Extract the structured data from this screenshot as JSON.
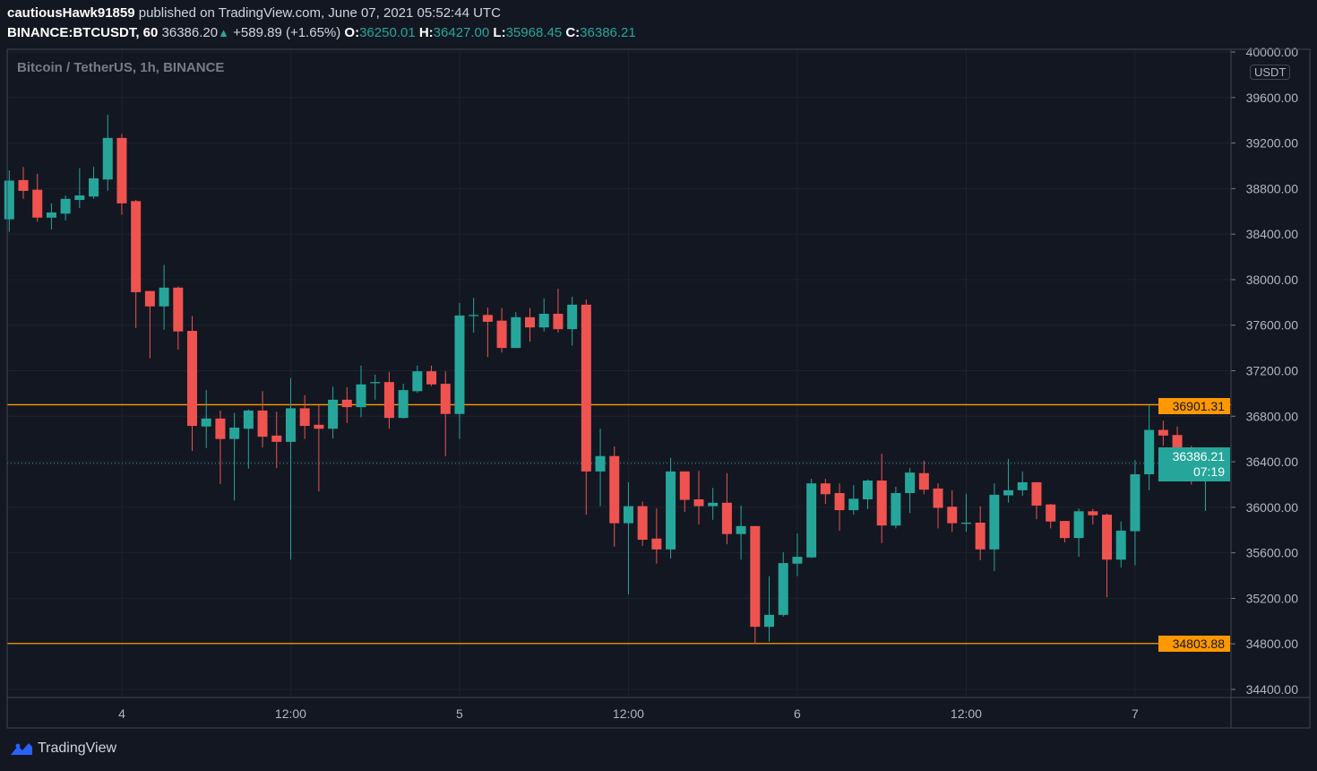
{
  "header": {
    "author": "cautiousHawk91859",
    "published_text": "published on TradingView.com, June 07, 2021 05:52:44 UTC",
    "symbol": "BINANCE:BTCUSDT, 60",
    "last_price": "36386.20",
    "change": "+589.89 (+1.65%)",
    "o_label": "O:",
    "o_value": "36250.01",
    "h_label": "H:",
    "h_value": "36427.00",
    "l_label": "L:",
    "l_value": "35968.45",
    "c_label": "C:",
    "c_value": "36386.21"
  },
  "legend": "Bitcoin / TetherUS, 1h, BINANCE",
  "currency_badge": "USDT",
  "price_tags": {
    "upper_line": "36901.31",
    "lower_line": "34803.88",
    "current_price": "36386.21",
    "countdown": "07:19"
  },
  "footer": {
    "brand": "TradingView"
  },
  "colors": {
    "background": "#131722",
    "up": "#26a69a",
    "down": "#ef5350",
    "horizontal_line": "#ff9800",
    "grid": "#1e222d",
    "axis_text": "#b2b5be"
  },
  "chart_data": {
    "type": "candlestick",
    "title": "Bitcoin / TetherUS, 1h, BINANCE",
    "ylim": [
      34400,
      40000
    ],
    "y_ticks": [
      34400,
      34800,
      35200,
      35600,
      36000,
      36400,
      36800,
      37200,
      37600,
      38000,
      38400,
      38800,
      39200,
      39600,
      40000
    ],
    "x_ticks": [
      {
        "time": "2021-06-04 00:00",
        "label": "4"
      },
      {
        "time": "2021-06-04 12:00",
        "label": "12:00"
      },
      {
        "time": "2021-06-05 00:00",
        "label": "5"
      },
      {
        "time": "2021-06-05 12:00",
        "label": "12:00"
      },
      {
        "time": "2021-06-06 00:00",
        "label": "6"
      },
      {
        "time": "2021-06-06 12:00",
        "label": "12:00"
      },
      {
        "time": "2021-06-07 00:00",
        "label": "7"
      }
    ],
    "grid": true,
    "horizontal_lines": [
      36901.31,
      34803.88
    ],
    "current_price": 36386.21,
    "time": [
      "2021-06-03 16:00",
      "2021-06-03 17:00",
      "2021-06-03 18:00",
      "2021-06-03 19:00",
      "2021-06-03 20:00",
      "2021-06-03 21:00",
      "2021-06-03 22:00",
      "2021-06-03 23:00",
      "2021-06-04 00:00",
      "2021-06-04 01:00",
      "2021-06-04 02:00",
      "2021-06-04 03:00",
      "2021-06-04 04:00",
      "2021-06-04 05:00",
      "2021-06-04 06:00",
      "2021-06-04 07:00",
      "2021-06-04 08:00",
      "2021-06-04 09:00",
      "2021-06-04 10:00",
      "2021-06-04 11:00",
      "2021-06-04 12:00",
      "2021-06-04 13:00",
      "2021-06-04 14:00",
      "2021-06-04 15:00",
      "2021-06-04 16:00",
      "2021-06-04 17:00",
      "2021-06-04 18:00",
      "2021-06-04 19:00",
      "2021-06-04 20:00",
      "2021-06-04 21:00",
      "2021-06-04 22:00",
      "2021-06-04 23:00",
      "2021-06-05 00:00",
      "2021-06-05 01:00",
      "2021-06-05 02:00",
      "2021-06-05 03:00",
      "2021-06-05 04:00",
      "2021-06-05 05:00",
      "2021-06-05 06:00",
      "2021-06-05 07:00",
      "2021-06-05 08:00",
      "2021-06-05 09:00",
      "2021-06-05 10:00",
      "2021-06-05 11:00",
      "2021-06-05 12:00",
      "2021-06-05 13:00",
      "2021-06-05 14:00",
      "2021-06-05 15:00",
      "2021-06-05 16:00",
      "2021-06-05 17:00",
      "2021-06-05 18:00",
      "2021-06-05 19:00",
      "2021-06-05 20:00",
      "2021-06-05 21:00",
      "2021-06-05 22:00",
      "2021-06-05 23:00",
      "2021-06-06 00:00",
      "2021-06-06 01:00",
      "2021-06-06 02:00",
      "2021-06-06 03:00",
      "2021-06-06 04:00",
      "2021-06-06 05:00",
      "2021-06-06 06:00",
      "2021-06-06 07:00",
      "2021-06-06 08:00",
      "2021-06-06 09:00",
      "2021-06-06 10:00",
      "2021-06-06 11:00",
      "2021-06-06 12:00",
      "2021-06-06 13:00",
      "2021-06-06 14:00",
      "2021-06-06 15:00",
      "2021-06-06 16:00",
      "2021-06-06 17:00",
      "2021-06-06 18:00",
      "2021-06-06 19:00",
      "2021-06-06 20:00",
      "2021-06-06 21:00",
      "2021-06-06 22:00",
      "2021-06-06 23:00",
      "2021-06-07 00:00",
      "2021-06-07 01:00",
      "2021-06-07 02:00",
      "2021-06-07 03:00",
      "2021-06-07 04:00",
      "2021-06-07 05:00"
    ],
    "ohlc": [
      [
        38530,
        38960,
        38420,
        38870
      ],
      [
        38875,
        38990,
        38710,
        38780
      ],
      [
        38790,
        38930,
        38510,
        38545
      ],
      [
        38545,
        38670,
        38440,
        38590
      ],
      [
        38580,
        38740,
        38520,
        38710
      ],
      [
        38700,
        38980,
        38630,
        38740
      ],
      [
        38730,
        38990,
        38710,
        38890
      ],
      [
        38880,
        39450,
        38780,
        39245
      ],
      [
        39245,
        39280,
        38570,
        38670
      ],
      [
        38690,
        38700,
        37575,
        37890
      ],
      [
        37900,
        37900,
        37310,
        37765
      ],
      [
        37765,
        38130,
        37560,
        37930
      ],
      [
        37930,
        37940,
        37385,
        37545
      ],
      [
        37550,
        37680,
        36495,
        36715
      ],
      [
        36710,
        37030,
        36520,
        36780
      ],
      [
        36780,
        36850,
        36205,
        36600
      ],
      [
        36600,
        36830,
        36060,
        36700
      ],
      [
        36690,
        36860,
        36340,
        36850
      ],
      [
        36850,
        37020,
        36525,
        36620
      ],
      [
        36630,
        36840,
        36345,
        36575
      ],
      [
        36575,
        37135,
        35540,
        36870
      ],
      [
        36870,
        36985,
        36600,
        36715
      ],
      [
        36725,
        36900,
        36140,
        36690
      ],
      [
        36690,
        37060,
        36605,
        36945
      ],
      [
        36945,
        37055,
        36740,
        36880
      ],
      [
        36880,
        37245,
        36790,
        37080
      ],
      [
        37090,
        37165,
        36945,
        37100
      ],
      [
        37100,
        37190,
        36690,
        36785
      ],
      [
        36785,
        37085,
        36780,
        37030
      ],
      [
        37020,
        37245,
        37005,
        37195
      ],
      [
        37195,
        37245,
        37065,
        37080
      ],
      [
        37085,
        37195,
        36450,
        36820
      ],
      [
        36820,
        37795,
        36600,
        37685
      ],
      [
        37680,
        37840,
        37535,
        37690
      ],
      [
        37690,
        37755,
        37320,
        37630
      ],
      [
        37640,
        37750,
        37360,
        37400
      ],
      [
        37400,
        37715,
        37400,
        37670
      ],
      [
        37670,
        37750,
        37455,
        37580
      ],
      [
        37580,
        37835,
        37545,
        37700
      ],
      [
        37700,
        37920,
        37535,
        37565
      ],
      [
        37565,
        37850,
        37420,
        37780
      ],
      [
        37780,
        37825,
        35935,
        36315
      ],
      [
        36315,
        36690,
        36010,
        36450
      ],
      [
        36450,
        36535,
        35655,
        35860
      ],
      [
        35860,
        36220,
        35235,
        36010
      ],
      [
        36010,
        36050,
        35660,
        35715
      ],
      [
        35725,
        35990,
        35505,
        35630
      ],
      [
        35630,
        36435,
        35550,
        36315
      ],
      [
        36315,
        36315,
        35960,
        36065
      ],
      [
        36070,
        36320,
        35850,
        36010
      ],
      [
        36010,
        36170,
        35890,
        36040
      ],
      [
        36040,
        36300,
        35675,
        35765
      ],
      [
        35765,
        36015,
        35540,
        35835
      ],
      [
        35835,
        35835,
        34800,
        34950
      ],
      [
        34950,
        35395,
        34820,
        35055
      ],
      [
        35055,
        35605,
        35040,
        35510
      ],
      [
        35505,
        35770,
        35395,
        35565
      ],
      [
        35560,
        36250,
        35555,
        36210
      ],
      [
        36210,
        36250,
        36030,
        36115
      ],
      [
        36125,
        36210,
        35795,
        35975
      ],
      [
        35975,
        36195,
        35935,
        36075
      ],
      [
        36070,
        36245,
        35985,
        36235
      ],
      [
        36235,
        36470,
        35685,
        35840
      ],
      [
        35840,
        36180,
        35815,
        36125
      ],
      [
        36125,
        36345,
        35950,
        36305
      ],
      [
        36300,
        36410,
        36115,
        36155
      ],
      [
        36165,
        36210,
        35815,
        35995
      ],
      [
        36005,
        36150,
        35785,
        35860
      ],
      [
        35855,
        36120,
        35785,
        35865
      ],
      [
        35865,
        36010,
        35535,
        35630
      ],
      [
        35630,
        36210,
        35440,
        36110
      ],
      [
        36105,
        36425,
        36040,
        36150
      ],
      [
        36150,
        36315,
        36100,
        36220
      ],
      [
        36220,
        36220,
        35895,
        36015
      ],
      [
        36025,
        36030,
        35815,
        35875
      ],
      [
        35880,
        35880,
        35690,
        35730
      ],
      [
        35730,
        35990,
        35565,
        35965
      ],
      [
        35965,
        35985,
        35850,
        35930
      ],
      [
        35935,
        35945,
        35210,
        35540
      ],
      [
        35540,
        35875,
        35470,
        35795
      ],
      [
        35790,
        36415,
        35490,
        36290
      ],
      [
        36290,
        36895,
        36150,
        36680
      ],
      [
        36680,
        36760,
        36540,
        36630
      ],
      [
        36635,
        36710,
        36275,
        36380
      ],
      [
        36385,
        36540,
        36200,
        36235
      ],
      [
        36250.01,
        36427,
        35968.45,
        36386.21
      ]
    ]
  }
}
